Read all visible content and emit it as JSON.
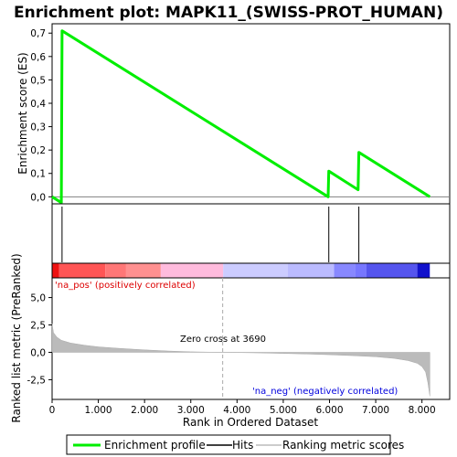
{
  "chart_data": {
    "type": "line",
    "title": "Enrichment plot: MAPK11_(SWISS-PROT_HUMAN)",
    "xlabel": "Rank in Ordered Dataset",
    "top_panel": {
      "ylabel": "Enrichment score (ES)",
      "ylim": [
        -0.03,
        0.74
      ],
      "yticks": [
        "0,0",
        "0,1",
        "0,2",
        "0,3",
        "0,4",
        "0,5",
        "0,6",
        "0,7"
      ],
      "ytick_values": [
        0.0,
        0.1,
        0.2,
        0.3,
        0.4,
        0.5,
        0.6,
        0.7
      ],
      "series": [
        {
          "name": "Enrichment profile",
          "color": "#00ee00",
          "x": [
            0,
            200,
            215,
            5970,
            5985,
            6620,
            6635,
            8170
          ],
          "y": [
            0.0,
            -0.025,
            0.71,
            0.0,
            0.11,
            0.03,
            0.19,
            0.0
          ]
        }
      ]
    },
    "hits": {
      "name": "Hits",
      "positions": [
        215,
        5985,
        6635
      ]
    },
    "bottom_panel": {
      "ylabel": "Ranked list metric (PreRanked)",
      "ylim": [
        -4.3,
        6.8
      ],
      "yticks": [
        "-2,5",
        "0,0",
        "2,5",
        "5,0"
      ],
      "ytick_values": [
        -2.5,
        0.0,
        2.5,
        5.0
      ],
      "series_name": "Ranking metric scores",
      "series_color": "#bbbbbb",
      "metric_curve": {
        "x": [
          0,
          30,
          100,
          200,
          400,
          700,
          1000,
          1500,
          2000,
          2500,
          3000,
          3690,
          4500,
          5000,
          5500,
          6000,
          6500,
          7000,
          7400,
          7700,
          7900,
          8000,
          8080,
          8130,
          8170
        ],
        "y": [
          2.6,
          1.8,
          1.4,
          1.1,
          0.85,
          0.65,
          0.5,
          0.35,
          0.22,
          0.12,
          0.05,
          0.0,
          -0.05,
          -0.1,
          -0.15,
          -0.22,
          -0.3,
          -0.4,
          -0.55,
          -0.75,
          -1.0,
          -1.3,
          -1.8,
          -2.8,
          -4.0
        ]
      },
      "zero_cross_label": "Zero cross at 3690",
      "zero_cross": 3690,
      "pos_label": "'na_pos' (positively correlated)",
      "neg_label": "'na_neg' (negatively correlated)",
      "pos_color": "#dd0000",
      "neg_color": "#0000dd"
    },
    "xlim": [
      0,
      8600
    ],
    "xticks": [
      "0",
      "1.000",
      "2.000",
      "3.000",
      "4.000",
      "5.000",
      "6.000",
      "7.000",
      "8.000"
    ],
    "xtick_values": [
      0,
      1000,
      2000,
      3000,
      4000,
      5000,
      6000,
      7000,
      8000
    ],
    "heat_bar": {
      "segments": [
        {
          "from": 0,
          "to": 150,
          "color": "#ee1111"
        },
        {
          "from": 150,
          "to": 1150,
          "color": "#ff5555"
        },
        {
          "from": 1150,
          "to": 1600,
          "color": "#ff7777"
        },
        {
          "from": 1600,
          "to": 2350,
          "color": "#ff9090"
        },
        {
          "from": 2350,
          "to": 3700,
          "color": "#ffbbdd"
        },
        {
          "from": 3700,
          "to": 5100,
          "color": "#ccccff"
        },
        {
          "from": 5100,
          "to": 6100,
          "color": "#bbbbff"
        },
        {
          "from": 6100,
          "to": 6550,
          "color": "#8888ff"
        },
        {
          "from": 6550,
          "to": 6800,
          "color": "#7777ff"
        },
        {
          "from": 6800,
          "to": 7900,
          "color": "#5555ee"
        },
        {
          "from": 7900,
          "to": 8170,
          "color": "#1111cc"
        }
      ]
    },
    "legend": [
      {
        "label": "Enrichment profile",
        "kind": "line",
        "color": "#00ee00"
      },
      {
        "label": "Hits",
        "kind": "line",
        "color": "#000000"
      },
      {
        "label": "Ranking metric scores",
        "kind": "line",
        "color": "#bbbbbb"
      }
    ]
  }
}
